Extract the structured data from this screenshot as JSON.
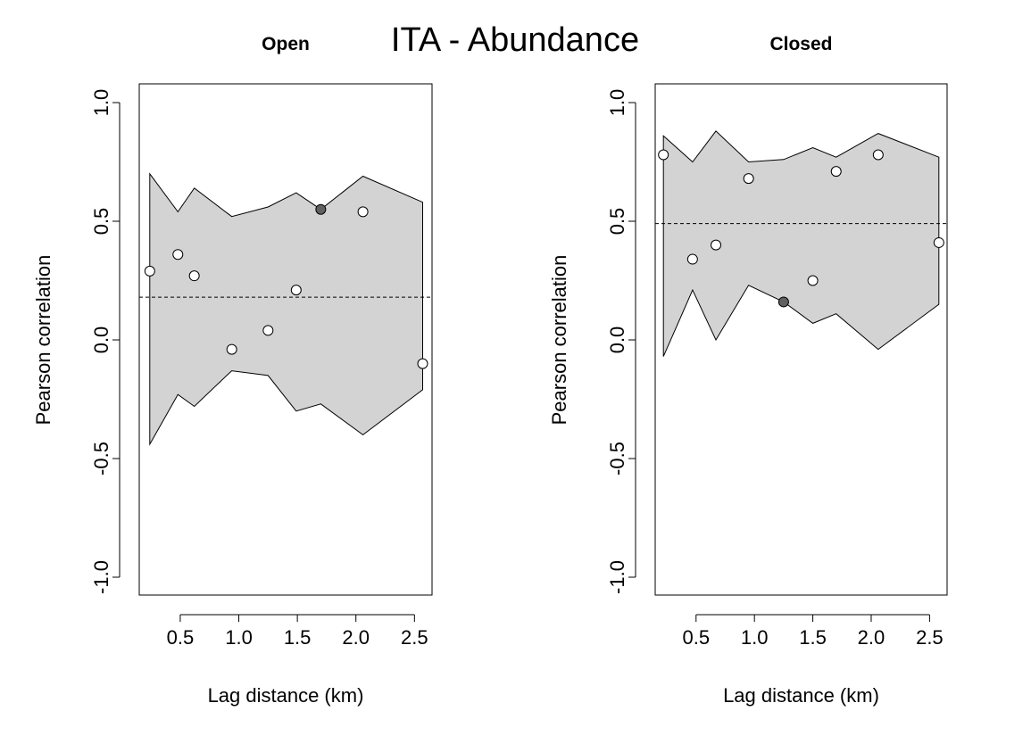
{
  "figure": {
    "title": "ITA - Abundance"
  },
  "chart_data": [
    {
      "type": "scatter",
      "title": "Open",
      "xlabel": "Lag distance (km)",
      "ylabel": "Pearson correlation",
      "xlim": [
        0.15,
        2.65
      ],
      "ylim": [
        -1.0,
        1.0
      ],
      "x_ticks": [
        0.5,
        1.0,
        1.5,
        2.0,
        2.5
      ],
      "x_tick_labels": [
        "0.5",
        "1.0",
        "1.5",
        "2.0",
        "2.5"
      ],
      "y_ticks": [
        -1.0,
        -0.5,
        0.0,
        0.5,
        1.0
      ],
      "y_tick_labels": [
        "-1.0",
        "-0.5",
        "0.0",
        "0.5",
        "1.0"
      ],
      "grid": false,
      "mean_line": 0.18,
      "envelope": {
        "x": [
          0.24,
          0.48,
          0.62,
          0.94,
          1.25,
          1.49,
          1.7,
          2.06,
          2.57
        ],
        "upper": [
          0.7,
          0.54,
          0.64,
          0.52,
          0.56,
          0.62,
          0.55,
          0.69,
          0.58
        ],
        "lower": [
          -0.44,
          -0.23,
          -0.28,
          -0.13,
          -0.15,
          -0.3,
          -0.27,
          -0.4,
          -0.21
        ]
      },
      "points": {
        "x": [
          0.24,
          0.48,
          0.62,
          0.94,
          1.25,
          1.49,
          1.7,
          2.06,
          2.57
        ],
        "y": [
          0.29,
          0.36,
          0.27,
          -0.04,
          0.04,
          0.21,
          0.55,
          0.54,
          -0.1
        ],
        "significant": [
          false,
          false,
          false,
          false,
          false,
          false,
          true,
          false,
          false
        ]
      },
      "colors": {
        "envelope_fill": "#d3d3d3",
        "point_open": "#ffffff",
        "point_significant": "#606060"
      }
    },
    {
      "type": "scatter",
      "title": "Closed",
      "xlabel": "Lag distance (km)",
      "ylabel": "Pearson correlation",
      "xlim": [
        0.15,
        2.65
      ],
      "ylim": [
        -1.0,
        1.0
      ],
      "x_ticks": [
        0.5,
        1.0,
        1.5,
        2.0,
        2.5
      ],
      "x_tick_labels": [
        "0.5",
        "1.0",
        "1.5",
        "2.0",
        "2.5"
      ],
      "y_ticks": [
        -1.0,
        -0.5,
        0.0,
        0.5,
        1.0
      ],
      "y_tick_labels": [
        "-1.0",
        "-0.5",
        "0.0",
        "0.5",
        "1.0"
      ],
      "grid": false,
      "mean_line": 0.49,
      "envelope": {
        "x": [
          0.22,
          0.47,
          0.67,
          0.95,
          1.25,
          1.5,
          1.7,
          2.06,
          2.58
        ],
        "upper": [
          0.86,
          0.75,
          0.88,
          0.75,
          0.76,
          0.81,
          0.77,
          0.87,
          0.77
        ],
        "lower": [
          -0.07,
          0.21,
          0.0,
          0.23,
          0.16,
          0.07,
          0.11,
          -0.04,
          0.15
        ]
      },
      "points": {
        "x": [
          0.22,
          0.47,
          0.67,
          0.95,
          1.25,
          1.5,
          1.7,
          2.06,
          2.58
        ],
        "y": [
          0.78,
          0.34,
          0.4,
          0.68,
          0.16,
          0.25,
          0.71,
          0.78,
          0.41
        ],
        "significant": [
          false,
          false,
          false,
          false,
          true,
          false,
          false,
          false,
          false
        ]
      },
      "colors": {
        "envelope_fill": "#d3d3d3",
        "point_open": "#ffffff",
        "point_significant": "#606060"
      }
    }
  ]
}
